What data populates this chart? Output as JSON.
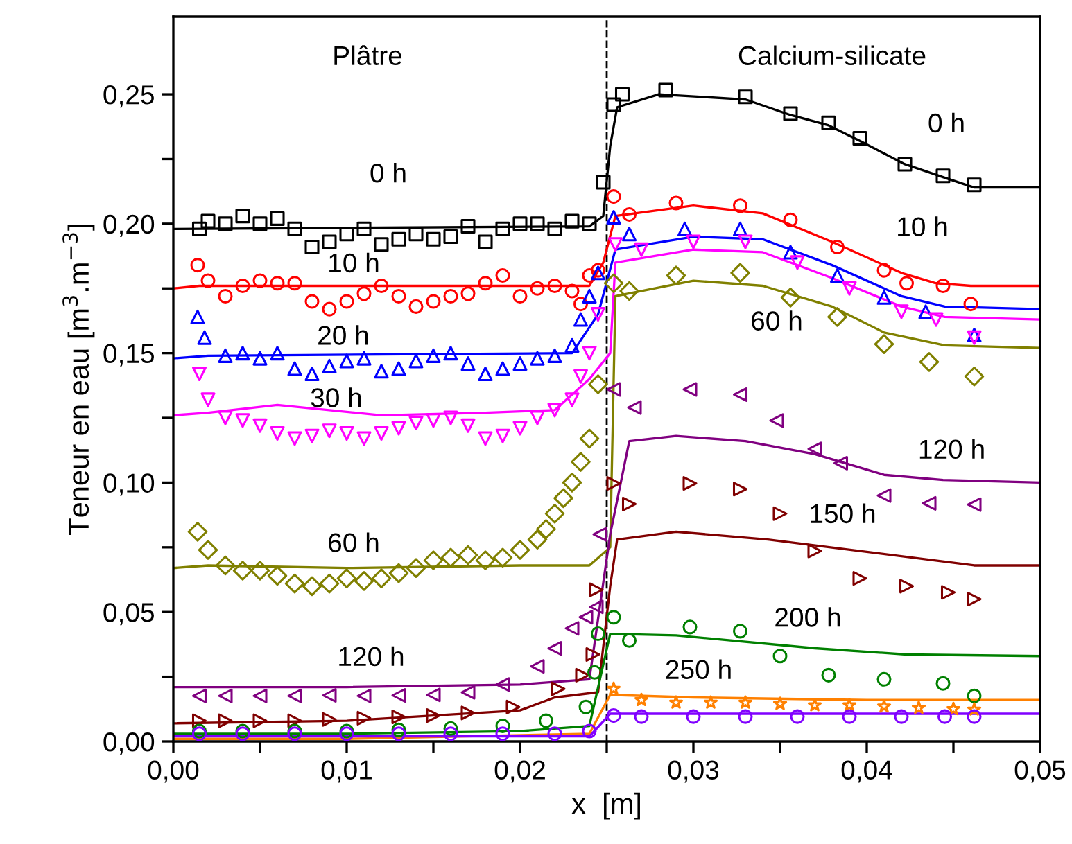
{
  "chart_data": {
    "type": "scatter",
    "xlabel": "x  [m]",
    "ylabel": "Teneur en eau [m$^{3}$.m$^{−3}$]",
    "xlim": [
      0,
      0.05
    ],
    "ylim": [
      0,
      0.28
    ],
    "xticks": [
      {
        "value": 0,
        "label": "0,00"
      },
      {
        "value": 0.005,
        "label": null
      },
      {
        "value": 0.01,
        "label": "0,01"
      },
      {
        "value": 0.015,
        "label": null
      },
      {
        "value": 0.02,
        "label": "0,02"
      },
      {
        "value": 0.025,
        "label": null
      },
      {
        "value": 0.03,
        "label": "0,03"
      },
      {
        "value": 0.035,
        "label": null
      },
      {
        "value": 0.04,
        "label": "0,04"
      },
      {
        "value": 0.045,
        "label": null
      },
      {
        "value": 0.05,
        "label": "0,05"
      }
    ],
    "yticks": [
      {
        "value": 0,
        "label": "0,00"
      },
      {
        "value": 0.025,
        "label": null
      },
      {
        "value": 0.05,
        "label": "0,05"
      },
      {
        "value": 0.075,
        "label": null
      },
      {
        "value": 0.1,
        "label": "0,10"
      },
      {
        "value": 0.125,
        "label": null
      },
      {
        "value": 0.15,
        "label": "0,15"
      },
      {
        "value": 0.175,
        "label": null
      },
      {
        "value": 0.2,
        "label": "0,20"
      },
      {
        "value": 0.225,
        "label": null
      },
      {
        "value": 0.25,
        "label": "0,25"
      }
    ],
    "ref_lines": [
      {
        "axis": "x",
        "value": 0.025,
        "label": null,
        "color": "#000000",
        "line_style": "dashed"
      }
    ],
    "annotations": [
      "Plâtre",
      "Calcium-silicate",
      "0 h",
      "10 h",
      "20 h",
      "30 h",
      "60 h",
      "120 h",
      "0 h",
      "10 h",
      "60 h",
      "120 h",
      "150 h",
      "200 h",
      "250 h"
    ],
    "series": [
      {
        "type": "line",
        "color": "#000000",
        "x": [
          0,
          0.024,
          0.0248,
          0.0252,
          0.0256,
          0.028,
          0.033,
          0.0356,
          0.0378,
          0.0396,
          0.0422,
          0.0444,
          0.0462,
          0.05
        ],
        "values": [
          0.198,
          0.199,
          0.203,
          0.23,
          0.245,
          0.25,
          0.248,
          0.242,
          0.238,
          0.232,
          0.223,
          0.218,
          0.214,
          0.214
        ]
      },
      {
        "type": "line",
        "color": "#ff0000",
        "x": [
          0,
          0.0015,
          0.024,
          0.0248,
          0.0255,
          0.03,
          0.034,
          0.038,
          0.042,
          0.044,
          0.046,
          0.05
        ],
        "values": [
          0.175,
          0.176,
          0.176,
          0.185,
          0.203,
          0.207,
          0.204,
          0.193,
          0.181,
          0.177,
          0.176,
          0.176
        ]
      },
      {
        "type": "line",
        "color": "#0000ff",
        "x": [
          0,
          0.002,
          0.023,
          0.0245,
          0.0255,
          0.03,
          0.034,
          0.038,
          0.042,
          0.0445,
          0.05
        ],
        "values": [
          0.148,
          0.149,
          0.15,
          0.165,
          0.19,
          0.195,
          0.194,
          0.184,
          0.172,
          0.168,
          0.167
        ]
      },
      {
        "type": "line",
        "color": "#ff00ff",
        "x": [
          0,
          0.002,
          0.006,
          0.012,
          0.018,
          0.022,
          0.024,
          0.0252,
          0.0255,
          0.03,
          0.034,
          0.038,
          0.042,
          0.0445,
          0.05
        ],
        "values": [
          0.126,
          0.127,
          0.13,
          0.126,
          0.127,
          0.128,
          0.14,
          0.15,
          0.185,
          0.19,
          0.189,
          0.179,
          0.168,
          0.164,
          0.163
        ]
      },
      {
        "type": "line",
        "color": "#808000",
        "x": [
          0,
          0.002,
          0.01,
          0.02,
          0.024,
          0.0252,
          0.0255,
          0.03,
          0.034,
          0.038,
          0.041,
          0.0445,
          0.05
        ],
        "values": [
          0.067,
          0.068,
          0.067,
          0.068,
          0.068,
          0.075,
          0.172,
          0.178,
          0.176,
          0.168,
          0.158,
          0.153,
          0.152
        ]
      },
      {
        "type": "line",
        "color": "#800080",
        "x": [
          0,
          0.01,
          0.02,
          0.024,
          0.0252,
          0.0263,
          0.029,
          0.033,
          0.037,
          0.041,
          0.0444,
          0.05
        ],
        "values": [
          0.021,
          0.021,
          0.022,
          0.024,
          0.08,
          0.116,
          0.118,
          0.116,
          0.111,
          0.103,
          0.101,
          0.1
        ]
      },
      {
        "type": "line",
        "color": "#800000",
        "x": [
          0,
          0.01,
          0.02,
          0.022,
          0.0245,
          0.0252,
          0.0256,
          0.029,
          0.0343,
          0.0396,
          0.0462,
          0.05
        ],
        "values": [
          0.007,
          0.008,
          0.012,
          0.017,
          0.019,
          0.06,
          0.078,
          0.081,
          0.078,
          0.0736,
          0.068,
          0.068
        ]
      },
      {
        "type": "line",
        "color": "#008000",
        "x": [
          0,
          0.01,
          0.02,
          0.024,
          0.0252,
          0.029,
          0.037,
          0.0423,
          0.05
        ],
        "values": [
          0.003,
          0.003,
          0.004,
          0.006,
          0.0416,
          0.041,
          0.036,
          0.0336,
          0.033
        ]
      },
      {
        "type": "line",
        "color": "#ff8000",
        "x": [
          0,
          0.01,
          0.024,
          0.0252,
          0.03,
          0.04,
          0.05
        ],
        "values": [
          0.001,
          0.001,
          0.003,
          0.018,
          0.017,
          0.016,
          0.016
        ]
      },
      {
        "type": "line",
        "color": "#8000ff",
        "x": [
          0,
          0.01,
          0.024,
          0.0252,
          0.03,
          0.04,
          0.05
        ],
        "values": [
          0.002,
          0.002,
          0.002,
          0.0107,
          0.0107,
          0.0107,
          0.0107
        ]
      },
      {
        "marker": "square",
        "color": "#000000",
        "x": [
          0.0015,
          0.002,
          0.003,
          0.004,
          0.005,
          0.006,
          0.007,
          0.008,
          0.009,
          0.01,
          0.011,
          0.012,
          0.013,
          0.014,
          0.015,
          0.016,
          0.017,
          0.018,
          0.019,
          0.02,
          0.021,
          0.022,
          0.023,
          0.024,
          0.0248,
          0.0254,
          0.0259,
          0.0284,
          0.033,
          0.0356,
          0.0378,
          0.0396,
          0.0422,
          0.0444,
          0.0462
        ],
        "values": [
          0.198,
          0.201,
          0.2,
          0.203,
          0.2,
          0.202,
          0.198,
          0.191,
          0.193,
          0.196,
          0.198,
          0.192,
          0.194,
          0.196,
          0.194,
          0.195,
          0.199,
          0.193,
          0.198,
          0.2,
          0.2,
          0.198,
          0.201,
          0.2,
          0.216,
          0.246,
          0.25,
          0.2516,
          0.249,
          0.2425,
          0.239,
          0.233,
          0.223,
          0.2185,
          0.215
        ]
      },
      {
        "marker": "circle",
        "color": "#ff0000",
        "x": [
          0.0014,
          0.002,
          0.003,
          0.004,
          0.005,
          0.006,
          0.007,
          0.008,
          0.009,
          0.01,
          0.011,
          0.012,
          0.013,
          0.014,
          0.015,
          0.016,
          0.017,
          0.018,
          0.019,
          0.02,
          0.021,
          0.022,
          0.023,
          0.0235,
          0.024,
          0.0245,
          0.0254,
          0.0263,
          0.029,
          0.0327,
          0.0356,
          0.0383,
          0.041,
          0.0423,
          0.0444,
          0.046
        ],
        "values": [
          0.184,
          0.178,
          0.172,
          0.176,
          0.178,
          0.177,
          0.177,
          0.17,
          0.167,
          0.17,
          0.173,
          0.176,
          0.172,
          0.168,
          0.17,
          0.172,
          0.173,
          0.177,
          0.18,
          0.172,
          0.175,
          0.176,
          0.174,
          0.169,
          0.18,
          0.182,
          0.2105,
          0.2036,
          0.208,
          0.207,
          0.2015,
          0.191,
          0.182,
          0.177,
          0.176,
          0.169
        ]
      },
      {
        "marker": "triangle",
        "color": "#0000ff",
        "x": [
          0.0014,
          0.0018,
          0.003,
          0.004,
          0.005,
          0.006,
          0.007,
          0.008,
          0.009,
          0.01,
          0.011,
          0.012,
          0.013,
          0.014,
          0.015,
          0.016,
          0.017,
          0.018,
          0.019,
          0.02,
          0.021,
          0.022,
          0.023,
          0.0235,
          0.024,
          0.0245,
          0.0254,
          0.0263,
          0.0295,
          0.0327,
          0.0356,
          0.0383,
          0.041,
          0.0434,
          0.0462
        ],
        "values": [
          0.164,
          0.156,
          0.149,
          0.15,
          0.148,
          0.15,
          0.144,
          0.142,
          0.145,
          0.147,
          0.148,
          0.143,
          0.144,
          0.147,
          0.149,
          0.15,
          0.146,
          0.142,
          0.144,
          0.146,
          0.148,
          0.149,
          0.153,
          0.163,
          0.172,
          0.181,
          0.2025,
          0.196,
          0.198,
          0.198,
          0.189,
          0.18,
          0.1715,
          0.166,
          0.157
        ]
      },
      {
        "marker": "triangle_down",
        "color": "#ff00ff",
        "x": [
          0.0015,
          0.002,
          0.003,
          0.004,
          0.005,
          0.006,
          0.007,
          0.008,
          0.009,
          0.01,
          0.011,
          0.012,
          0.013,
          0.014,
          0.015,
          0.016,
          0.017,
          0.018,
          0.019,
          0.02,
          0.021,
          0.022,
          0.023,
          0.0235,
          0.024,
          0.0245,
          0.0255,
          0.027,
          0.03,
          0.033,
          0.036,
          0.039,
          0.042,
          0.044,
          0.0462
        ],
        "values": [
          0.142,
          0.132,
          0.125,
          0.124,
          0.122,
          0.119,
          0.117,
          0.118,
          0.12,
          0.119,
          0.117,
          0.119,
          0.121,
          0.123,
          0.124,
          0.125,
          0.122,
          0.117,
          0.118,
          0.121,
          0.125,
          0.128,
          0.132,
          0.141,
          0.15,
          0.165,
          0.192,
          0.19,
          0.193,
          0.193,
          0.185,
          0.175,
          0.166,
          0.163,
          0.156
        ]
      },
      {
        "marker": "diamond",
        "color": "#808000",
        "x": [
          0.0014,
          0.002,
          0.003,
          0.004,
          0.005,
          0.006,
          0.007,
          0.008,
          0.009,
          0.01,
          0.011,
          0.012,
          0.013,
          0.014,
          0.015,
          0.016,
          0.017,
          0.018,
          0.019,
          0.02,
          0.021,
          0.0215,
          0.022,
          0.0225,
          0.023,
          0.0235,
          0.024,
          0.0245,
          0.0254,
          0.0263,
          0.029,
          0.0327,
          0.0356,
          0.0383,
          0.041,
          0.0436,
          0.0462
        ],
        "values": [
          0.081,
          0.074,
          0.068,
          0.066,
          0.066,
          0.064,
          0.061,
          0.06,
          0.061,
          0.063,
          0.062,
          0.063,
          0.065,
          0.067,
          0.07,
          0.071,
          0.072,
          0.07,
          0.071,
          0.074,
          0.078,
          0.082,
          0.088,
          0.094,
          0.1,
          0.108,
          0.117,
          0.138,
          0.177,
          0.174,
          0.18,
          0.181,
          0.1715,
          0.164,
          0.1535,
          0.1466,
          0.141
        ]
      },
      {
        "marker": "triangle_left",
        "color": "#800080",
        "x": [
          0.0015,
          0.003,
          0.005,
          0.007,
          0.009,
          0.011,
          0.013,
          0.015,
          0.017,
          0.019,
          0.021,
          0.022,
          0.023,
          0.0238,
          0.0244,
          0.0246,
          0.0254,
          0.0266,
          0.0298,
          0.0327,
          0.0348,
          0.037,
          0.0385,
          0.041,
          0.0436,
          0.0462
        ],
        "values": [
          0.0176,
          0.0176,
          0.0176,
          0.0176,
          0.0178,
          0.0176,
          0.0178,
          0.018,
          0.019,
          0.022,
          0.029,
          0.036,
          0.0437,
          0.048,
          0.052,
          0.08,
          0.136,
          0.129,
          0.136,
          0.134,
          0.124,
          0.113,
          0.1075,
          0.095,
          0.092,
          0.0915
        ]
      },
      {
        "marker": "triangle_right",
        "color": "#800000",
        "x": [
          0.0015,
          0.003,
          0.005,
          0.007,
          0.009,
          0.011,
          0.013,
          0.015,
          0.017,
          0.0196,
          0.0222,
          0.0236,
          0.0242,
          0.0244,
          0.0254,
          0.0263,
          0.0298,
          0.0327,
          0.035,
          0.037,
          0.0396,
          0.0423,
          0.0447,
          0.0462
        ],
        "values": [
          0.008,
          0.008,
          0.008,
          0.008,
          0.0085,
          0.009,
          0.0095,
          0.01,
          0.011,
          0.0133,
          0.0203,
          0.0256,
          0.0336,
          0.0586,
          0.0997,
          0.0917,
          0.0997,
          0.0975,
          0.088,
          0.0736,
          0.063,
          0.06,
          0.0576,
          0.055
        ]
      },
      {
        "marker": "circle",
        "color": "#008000",
        "x": [
          0.0015,
          0.004,
          0.007,
          0.01,
          0.013,
          0.016,
          0.019,
          0.0215,
          0.0238,
          0.0243,
          0.0245,
          0.0254,
          0.0263,
          0.0298,
          0.0327,
          0.035,
          0.0378,
          0.041,
          0.0444,
          0.0462
        ],
        "values": [
          0.004,
          0.004,
          0.004,
          0.004,
          0.0045,
          0.005,
          0.006,
          0.008,
          0.0133,
          0.0267,
          0.0416,
          0.048,
          0.039,
          0.0442,
          0.0426,
          0.033,
          0.0256,
          0.024,
          0.0224,
          0.0176
        ]
      },
      {
        "marker": "star",
        "color": "#ff8000",
        "x": [
          0.0254,
          0.027,
          0.029,
          0.031,
          0.033,
          0.035,
          0.037,
          0.039,
          0.041,
          0.043,
          0.045,
          0.0462
        ],
        "values": [
          0.0203,
          0.016,
          0.015,
          0.015,
          0.015,
          0.0145,
          0.014,
          0.014,
          0.0135,
          0.013,
          0.0125,
          0.0123
        ]
      },
      {
        "marker": "circle",
        "color": "#8000ff",
        "x": [
          0.0015,
          0.004,
          0.007,
          0.01,
          0.013,
          0.016,
          0.019,
          0.022,
          0.024,
          0.0254,
          0.027,
          0.03,
          0.033,
          0.036,
          0.039,
          0.042,
          0.0445,
          0.0462
        ],
        "values": [
          0.003,
          0.003,
          0.003,
          0.003,
          0.003,
          0.003,
          0.003,
          0.003,
          0.004,
          0.01,
          0.0096,
          0.0096,
          0.0096,
          0.0096,
          0.0096,
          0.0096,
          0.0096,
          0.0096
        ]
      }
    ]
  }
}
